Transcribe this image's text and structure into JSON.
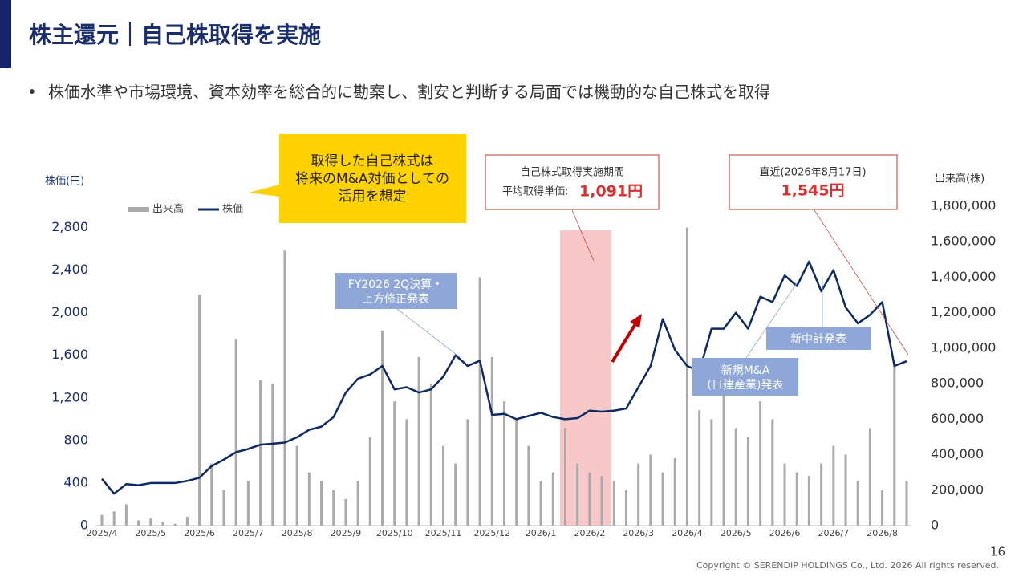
{
  "header": {
    "title": "株主還元｜自己株取得を実施",
    "bullet": "株価水準や市場環境、資本効率を総合的に勘案し、割安と判断する局面では機動的な自己株式を取得"
  },
  "chart_data": {
    "type": "bar-line",
    "ylabel": "株価(円)",
    "y2label": "出来高(株)",
    "categories": [
      "2025/4",
      null,
      null,
      null,
      "2025/5",
      null,
      null,
      null,
      "2025/6",
      null,
      null,
      null,
      "2025/7",
      null,
      null,
      null,
      "2025/8",
      null,
      null,
      null,
      "2025/9",
      null,
      null,
      null,
      "2025/10",
      null,
      null,
      null,
      "2025/11",
      null,
      null,
      null,
      "2025/12",
      null,
      null,
      null,
      "2026/1",
      null,
      null,
      null,
      "2026/2",
      null,
      null,
      null,
      "2026/3",
      null,
      null,
      null,
      "2026/4",
      null,
      null,
      null,
      "2026/5",
      null,
      null,
      null,
      "2026/6",
      null,
      null,
      null,
      "2026/7",
      null,
      null,
      null,
      "2026/8",
      null,
      null
    ],
    "series": [
      {
        "name": "出来高",
        "type": "bar",
        "axis": "y2",
        "color": "#aaaaaa",
        "values": [
          60000,
          80000,
          120000,
          30000,
          40000,
          20000,
          10000,
          50000,
          1300000,
          350000,
          200000,
          1050000,
          250000,
          820000,
          800000,
          1550000,
          450000,
          300000,
          250000,
          200000,
          150000,
          250000,
          500000,
          1100000,
          700000,
          600000,
          950000,
          800000,
          450000,
          350000,
          600000,
          1400000,
          950000,
          700000,
          600000,
          450000,
          250000,
          300000,
          550000,
          350000,
          300000,
          280000,
          250000,
          200000,
          350000,
          400000,
          300000,
          380000,
          1680000,
          650000,
          600000,
          850000,
          550000,
          500000,
          700000,
          600000,
          350000,
          300000,
          280000,
          350000,
          450000,
          400000,
          250000,
          550000,
          200000,
          900000,
          250000
        ]
      },
      {
        "name": "株価",
        "type": "line",
        "color": "#0d2a63",
        "values": [
          440,
          300,
          390,
          380,
          400,
          400,
          400,
          420,
          450,
          560,
          620,
          690,
          720,
          760,
          770,
          780,
          830,
          900,
          930,
          1020,
          1250,
          1380,
          1420,
          1500,
          1280,
          1300,
          1250,
          1280,
          1400,
          1600,
          1500,
          1550,
          1040,
          1050,
          1000,
          1030,
          1060,
          1020,
          1000,
          1010,
          1080,
          1070,
          1080,
          1100,
          1300,
          1500,
          1940,
          1650,
          1500,
          1450,
          1850,
          1850,
          2000,
          1850,
          2150,
          2100,
          2350,
          2250,
          2480,
          2200,
          2400,
          2050,
          1900,
          1980,
          2100,
          1500,
          1545
        ]
      }
    ],
    "ylim": [
      0,
      3000
    ],
    "yticks": [
      0,
      400,
      800,
      {
        "value": 1200,
        "label": "1,200"
      },
      {
        "value": 1600,
        "label": "1,600"
      },
      {
        "value": 2000,
        "label": "2,000"
      },
      {
        "value": 2400,
        "label": "2,400"
      },
      {
        "value": 2800,
        "label": "2,800"
      }
    ],
    "y2lim": [
      0,
      1800000
    ],
    "y2ticks": [
      0,
      {
        "value": 200000,
        "label": "200,000"
      },
      {
        "value": 400000,
        "label": "400,000"
      },
      {
        "value": 600000,
        "label": "600,000"
      },
      {
        "value": 800000,
        "label": "800,000"
      },
      {
        "value": 1000000,
        "label": "1,000,000"
      },
      {
        "value": 1200000,
        "label": "1,200,000"
      },
      {
        "value": 1400000,
        "label": "1,400,000"
      },
      {
        "value": 1600000,
        "label": "1,600,000"
      },
      {
        "value": 1800000,
        "label": "1,800,000"
      }
    ],
    "annotations": {
      "note": [
        "取得した自己株式は",
        "将来のM&A対価としての",
        "活用を想定"
      ],
      "period": [
        "自己株式取得実施期間",
        "平均取得単価:",
        "1,091円"
      ],
      "latest": [
        "直近(2026年8月17日)",
        "1,545円"
      ],
      "fy": [
        "FY2026 2Q決算・",
        "上方修正発表"
      ],
      "ma": [
        "新規M&A",
        "(日建産業)発表"
      ],
      "plan": [
        "新中計発表"
      ]
    }
  },
  "footer": {
    "page": "16",
    "copyright": "Copyright © SERENDIP HOLDINGS Co., Ltd. 2026 All rights reserved."
  }
}
